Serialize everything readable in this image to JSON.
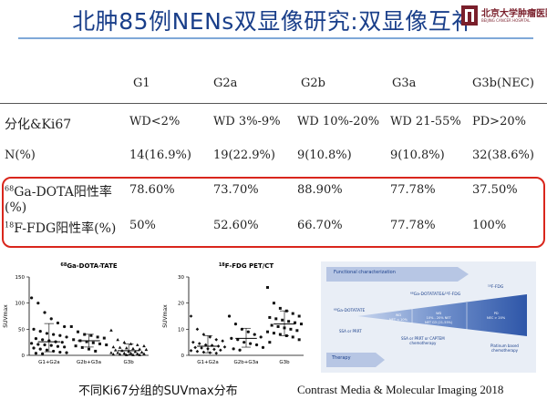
{
  "slide": {
    "title": "北肿85例NENs双显像研究:双显像互补",
    "logo_text": "北京大学肿瘤医院",
    "logo_sub": "BEIJING CANCER HOSPITAL",
    "colors": {
      "title": "#1a3f8a",
      "box": "#d9261c",
      "accent": "#4a73b8"
    }
  },
  "table": {
    "columns": [
      "",
      "G1",
      "G2a",
      "G2b",
      "G3a",
      "G3b(NEC)"
    ],
    "rows": [
      {
        "label": "分化&Ki67",
        "cells": [
          "WD<2%",
          "WD 3%-9%",
          "WD 10%-20%",
          "WD 21-55%",
          "PD>20%"
        ]
      },
      {
        "label": "N(%)",
        "cells": [
          "14(16.9%)",
          "19(22.9%)",
          "9(10.8%)",
          "9(10.8%)",
          "32(38.6%)"
        ]
      },
      {
        "label_sup": "68",
        "label": "Ga-DOTA阳性率",
        "label2": "(%)",
        "cells": [
          "78.60%",
          "73.70%",
          "88.90%",
          "77.78%",
          "37.50%"
        ]
      },
      {
        "label_sup": "18",
        "label": "F-FDG阳性率(%)",
        "cells": [
          "50%",
          "52.60%",
          "66.70%",
          "77.78%",
          "100%"
        ]
      }
    ]
  },
  "chart_data": [
    {
      "type": "scatter",
      "title_sup": "68",
      "title": "Ga-DOTA-TATE",
      "ylabel": "SUVmax",
      "ylim": [
        0,
        150
      ],
      "yticks": [
        0,
        50,
        100,
        150
      ],
      "categories": [
        "G1+G2a",
        "G2b+G3a",
        "G3b"
      ],
      "markers": [
        "circle",
        "square",
        "triangle"
      ],
      "series": [
        {
          "category": "G1+G2a",
          "values": [
            110,
            100,
            82,
            70,
            62,
            55,
            50,
            46,
            42,
            40,
            38,
            35,
            32,
            30,
            28,
            26,
            25,
            23,
            21,
            20,
            19,
            17,
            16,
            14,
            12,
            10,
            8,
            6,
            5,
            4,
            3
          ]
        },
        {
          "category": "G2b+G3a",
          "values": [
            55,
            45,
            40,
            38,
            35,
            33,
            30,
            28,
            26,
            24,
            22,
            20,
            18,
            15,
            12,
            8
          ]
        },
        {
          "category": "G3b",
          "values": [
            48,
            30,
            25,
            22,
            20,
            18,
            16,
            15,
            14,
            13,
            12,
            11,
            10,
            9,
            8,
            7,
            6,
            5,
            5,
            4,
            4,
            3,
            3,
            2,
            2,
            1,
            1,
            1
          ]
        }
      ]
    },
    {
      "type": "scatter",
      "title_sup": "18",
      "title": "F-FDG PET/CT",
      "ylabel": "SUVmax",
      "ylim": [
        0,
        30
      ],
      "yticks": [
        0,
        10,
        20,
        30
      ],
      "categories": [
        "G1+G2a",
        "G2b+G3a",
        "G3b"
      ],
      "markers": [
        "diamond",
        "circle",
        "square"
      ],
      "series": [
        {
          "category": "G1+G2a",
          "values": [
            15,
            10,
            8,
            7,
            6,
            5.5,
            5,
            4.5,
            4,
            3.8,
            3.5,
            3.2,
            3,
            2.8,
            2.5,
            2.3,
            2,
            1.8,
            1.5,
            1.2,
            1,
            0.8
          ]
        },
        {
          "category": "G2b+G3a",
          "values": [
            15,
            12,
            10,
            9,
            8,
            7,
            6.5,
            6,
            5,
            4.5,
            4,
            3,
            2.5,
            2
          ]
        },
        {
          "category": "G3b",
          "values": [
            26,
            20,
            18,
            17,
            16,
            15,
            14.5,
            14,
            13.5,
            13,
            12.5,
            12,
            11.5,
            11,
            10.5,
            10,
            9.5,
            9,
            8.5,
            8,
            7.5,
            7,
            6,
            5
          ]
        }
      ]
    }
  ],
  "diagram": {
    "functional": "Functional characterization",
    "therapy": "Therapy",
    "ga_label": "⁶⁸Ga-DOTATATE",
    "both_label": "⁶⁸Ga-DOTATATE&¹⁸F-FDG",
    "fdg_label": "¹⁸F-FDG",
    "wd1": "WD",
    "wd1b": "NET < 10%",
    "wd2": "WD",
    "wd2b": "10% - 20% NET",
    "wd2c": "NET G3 (21-55%)",
    "pd": "PD",
    "pdb": "NEC > 20%",
    "t1": "SSA or PRRT",
    "t2": "SSA or PRRT or CAPTEM",
    "t2b": "chemotherapy",
    "t3": "Platinum based",
    "t3b": "chemotherapy"
  },
  "captions": {
    "left": "不同Ki67分组的SUVmax分布",
    "right": "Contrast Media & Molecular Imaging 2018"
  }
}
